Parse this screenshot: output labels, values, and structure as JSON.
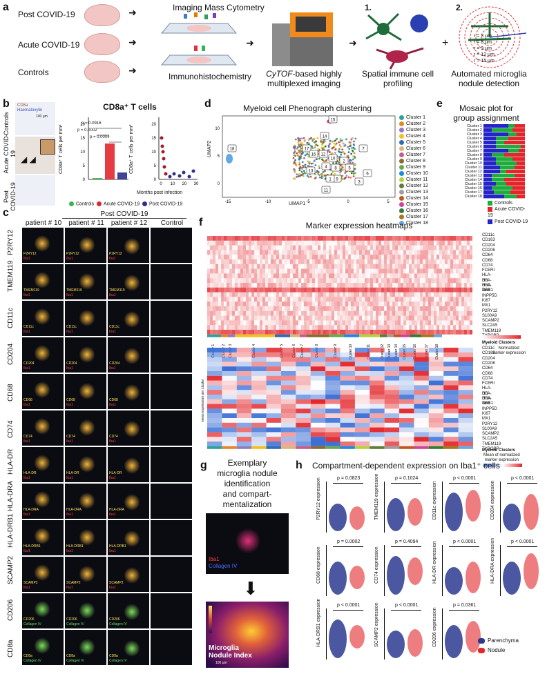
{
  "panel_letters": [
    "a",
    "b",
    "c",
    "d",
    "e",
    "f",
    "g",
    "h"
  ],
  "a": {
    "groups": [
      "Post COVID-19",
      "Acute COVID-19",
      "Controls"
    ],
    "method1": "Imaging Mass Cytometry",
    "method2": "Immunohistochemistry",
    "cytof_em": "CyTOF",
    "cytof_rest1": "-based highly",
    "cytof_rest2": "multiplexed imaging",
    "step1_num": "1.",
    "step1_label1": "Spatial immune cell",
    "step1_label2": "profiling",
    "plus": "+",
    "step2_num": "2.",
    "step2_label1": "Automated microglia",
    "step2_label2": "nodule detection",
    "radii": [
      "r = 3 µm",
      "r = 6 µm",
      "r = 9 µm",
      "r = 12 µm",
      "r = 15 µm"
    ]
  },
  "b": {
    "title": "CD8a⁺ T cells",
    "rows": [
      "Controls",
      "Acute COVID-19",
      "Post COVID-19"
    ],
    "stain1": "CD8a",
    "stain2": "Haematoxylin",
    "scale": "100 µm",
    "ylabel": "CD8a⁺ T cells per mm²",
    "ylabel2": "CD8a⁺ T cells per mm²",
    "xlabel2": "Months post infection",
    "p1": "p = 0.0916",
    "p2": "p = 0.0002",
    "p3": "p = 0.0004",
    "legend": [
      "Controls",
      "Acute COVID-19",
      "Post COVID-19"
    ],
    "legend_colors": [
      "#39b54a",
      "#e3262b",
      "#2b2f8f"
    ],
    "yticks": [
      "0",
      "5",
      "10",
      "15",
      "20"
    ],
    "yticks2": [
      "0",
      "5",
      "10",
      "15",
      "20"
    ],
    "xticks2": [
      "0",
      "10",
      "20",
      "30"
    ]
  },
  "c": {
    "header": "Post COVID-19",
    "columns": [
      "patient # 10",
      "patient # 11",
      "patient # 12",
      "Control"
    ],
    "rows": [
      "P2RY12",
      "TMEM119",
      "CD11c",
      "CD204",
      "CD68",
      "CD74",
      "HLA-DR",
      "HLA-DRA",
      "HLA-DRB1",
      "SCAMP2",
      "CD206",
      "CD8a"
    ],
    "overlay2": [
      "Iba1",
      "Iba1",
      "Iba1",
      "Iba1",
      "Iba1",
      "Iba1",
      "Iba1",
      "Iba1",
      "Iba1",
      "Iba1",
      "Collagen IV",
      "Collagen IV"
    ]
  },
  "d": {
    "title": "Myeloid cell Phenograph clustering",
    "xlabel": "UMAP1",
    "ylabel": "UMAP2",
    "xticks": [
      "-15",
      "-10",
      "-5",
      "0",
      "5"
    ],
    "yticks": [
      "10",
      "5",
      "0"
    ],
    "clusters": [
      "Cluster 1",
      "Cluster 2",
      "Cluster 3",
      "Cluster 4",
      "Cluster 5",
      "Cluster 6",
      "Cluster 7",
      "Cluster 8",
      "Cluster 9",
      "Cluster 10",
      "Cluster 11",
      "Cluster 12",
      "Cluster 13",
      "Cluster 14",
      "Cluster 15",
      "Cluster 16",
      "Cluster 17",
      "Cluster 18"
    ],
    "cluster_colors": [
      "#2aa39a",
      "#e6862a",
      "#8e7cc3",
      "#f2c21a",
      "#2f6db5",
      "#d6b87a",
      "#c95b8c",
      "#8a6a2f",
      "#6aa84f",
      "#1e88e5",
      "#b4d33b",
      "#5f7a3b",
      "#9f9f9f",
      "#bd5a1b",
      "#d1439a",
      "#2e7d32",
      "#a6761d",
      "#63a9e2"
    ],
    "map_labels": [
      "15",
      "14",
      "17",
      "16",
      "12",
      "10",
      "7",
      "2",
      "8",
      "4",
      "5",
      "6",
      "3",
      "9",
      "1",
      "13",
      "11",
      "18"
    ]
  },
  "e": {
    "title1": "Mosaic plot for",
    "title2": "group assignment",
    "legend": [
      "Controls",
      "Acute COVID-19",
      "Post COVID-19"
    ],
    "colors": [
      "#1fae3d",
      "#e3262b",
      "#2424c8"
    ],
    "rows": [
      "Cluster 1",
      "Cluster 2",
      "Cluster 3",
      "Cluster 4",
      "Cluster 5",
      "Cluster 6",
      "Cluster 7",
      "Cluster 8",
      "Cluster 9",
      "Cluster 10",
      "Cluster 11",
      "Cluster 12",
      "Cluster 13",
      "Cluster 14",
      "Cluster 15",
      "Cluster 16",
      "Cluster 17",
      "Cluster 18"
    ]
  },
  "f": {
    "title": "Marker expression heatmaps",
    "markers": [
      "CD11c",
      "CD163",
      "CD204",
      "CD206",
      "CD64",
      "CD68",
      "CD74",
      "FCERI",
      "HLA-DR",
      "HLA-DRA",
      "HLA-DRB1",
      "Iba1",
      "INPP5D",
      "Ki67",
      "MX1",
      "P2RY12",
      "S100A9",
      "SCAMP2",
      "SLC2A5",
      "TMEM119",
      "TYROBP"
    ],
    "top_legend_title": "Myeloid Clusters",
    "top_legend_sub1": "Normalized",
    "top_legend_sub2": "marker expression",
    "top_ticks": [
      "0",
      "0.2",
      "0.4",
      "0.6",
      "0.8",
      "1.0"
    ],
    "bottom_legend_title": "Myeloid Clusters",
    "bottom_legend_sub1": "Mean of normalized",
    "bottom_legend_sub2": "marker expression",
    "bottom_ticks": [
      "-1",
      "0",
      "1",
      "2"
    ],
    "ylabel": "mean expression per cluster",
    "clusters_top": [
      "Cluster 1",
      "Cluster 2",
      "Cluster 3",
      "Cluster 4",
      "Cluster 5",
      "Cluster 6",
      "Cluster 7",
      "Cluster 8",
      "Cluster 9",
      "Cluster 10",
      "Cluster 11",
      "Cluster 12",
      "Cluster 13",
      "Cluster 14",
      "Cluster 15",
      "Cluster 16",
      "Cluster 17",
      "Cluster 18"
    ]
  },
  "g": {
    "title1": "Exemplary",
    "title2": "microglia nodule",
    "title3": "identification",
    "title4": "and compart-",
    "title5": "mentalization",
    "stain1": "Iba1",
    "stain2": "Collagen IV",
    "index_label1": "Microglia",
    "index_label2": "Nodule Index",
    "scale": "100 µm"
  },
  "h": {
    "title": "Compartment-dependent expression on Iba1⁺ cells",
    "legend": [
      "Parenchyma",
      "Nodule"
    ],
    "legend_colors": [
      "#2b3990",
      "#e3262b"
    ],
    "panels": [
      {
        "marker": "P2RY12 expression",
        "p": "p = 0.0823"
      },
      {
        "marker": "TMEM119 expression",
        "p": "p = 0.1024"
      },
      {
        "marker": "CD11c expression",
        "p": "p < 0.0001"
      },
      {
        "marker": "CD204 expression",
        "p": "p < 0.0001"
      },
      {
        "marker": "CD68 expression",
        "p": "p = 0.0002"
      },
      {
        "marker": "CD74 expression",
        "p": "p = 0.4094"
      },
      {
        "marker": "HLA-DR expression",
        "p": "p < 0.0001"
      },
      {
        "marker": "HLA-DRA expression",
        "p": "p < 0.0001"
      },
      {
        "marker": "HLA-DRB1 expression",
        "p": "p < 0.0001"
      },
      {
        "marker": "SCAMP2 expression",
        "p": "p < 0.0001"
      },
      {
        "marker": "CD206 expression",
        "p": "p = 0.0361"
      }
    ]
  }
}
